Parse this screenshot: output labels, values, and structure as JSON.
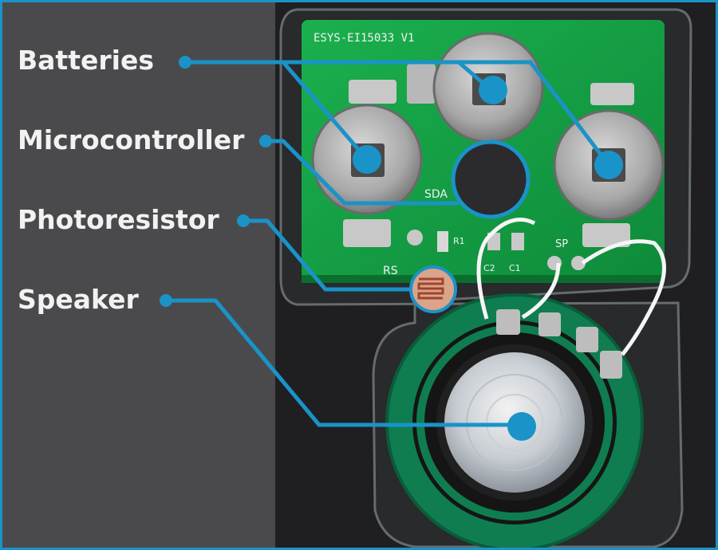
{
  "labels": {
    "batteries": "Batteries",
    "microcontroller": "Microcontroller",
    "photoresistor": "Photoresistor",
    "speaker": "Speaker"
  },
  "board": {
    "silkscreen_title": "ESYS-EI15033 V1",
    "silkscreen_sda": "SDA",
    "silkscreen_rs": "RS",
    "silkscreen_r1": "R1",
    "silkscreen_c2": "C2",
    "silkscreen_c1": "C1",
    "silkscreen_sp": "SP"
  },
  "colors": {
    "accent": "#1a93c8",
    "label_text": "#f2f2f2",
    "pcb_green": "#16a046",
    "speaker_green": "#10885a"
  }
}
